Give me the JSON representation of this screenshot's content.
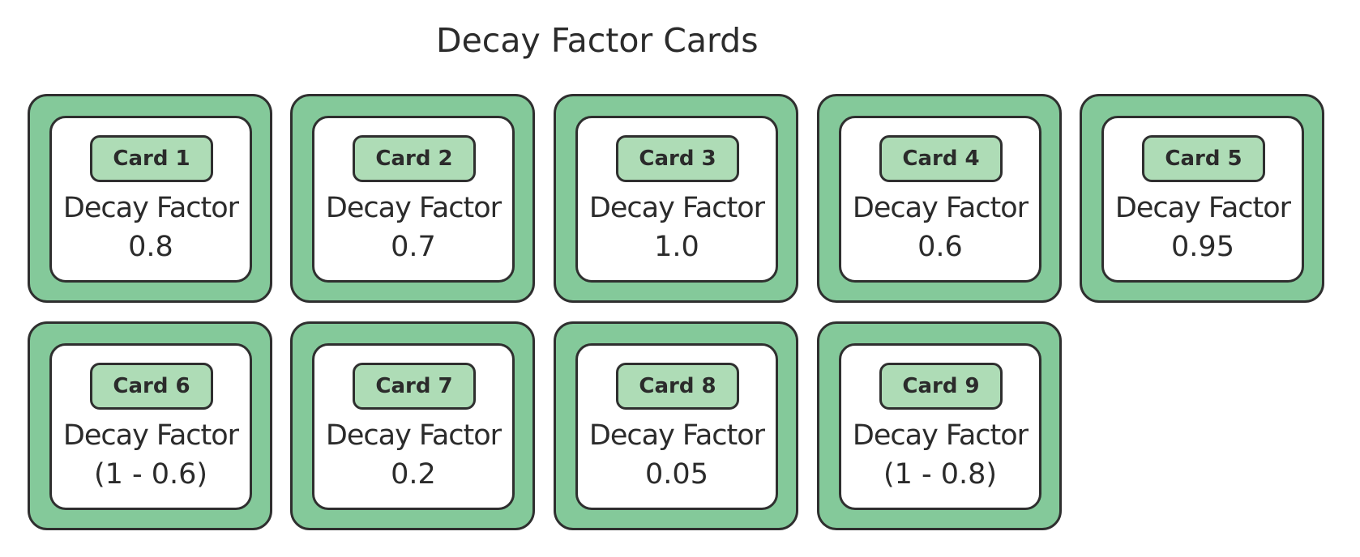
{
  "title": "Decay Factor Cards",
  "colors": {
    "card_outer": "#84c99a",
    "card_inner": "#ffffff",
    "badge": "#aedcb6",
    "border": "#2f2f2f",
    "text": "#2b2b2b"
  },
  "cards": [
    {
      "badge": "Card 1",
      "label": "Decay Factor",
      "value": "0.8"
    },
    {
      "badge": "Card 2",
      "label": "Decay Factor",
      "value": "0.7"
    },
    {
      "badge": "Card 3",
      "label": "Decay Factor",
      "value": "1.0"
    },
    {
      "badge": "Card 4",
      "label": "Decay Factor",
      "value": "0.6"
    },
    {
      "badge": "Card 5",
      "label": "Decay Factor",
      "value": "0.95"
    },
    {
      "badge": "Card 6",
      "label": "Decay Factor",
      "value": "(1 - 0.6)"
    },
    {
      "badge": "Card 7",
      "label": "Decay Factor",
      "value": "0.2"
    },
    {
      "badge": "Card 8",
      "label": "Decay Factor",
      "value": "0.05"
    },
    {
      "badge": "Card 9",
      "label": "Decay Factor",
      "value": "(1 - 0.8)"
    }
  ]
}
